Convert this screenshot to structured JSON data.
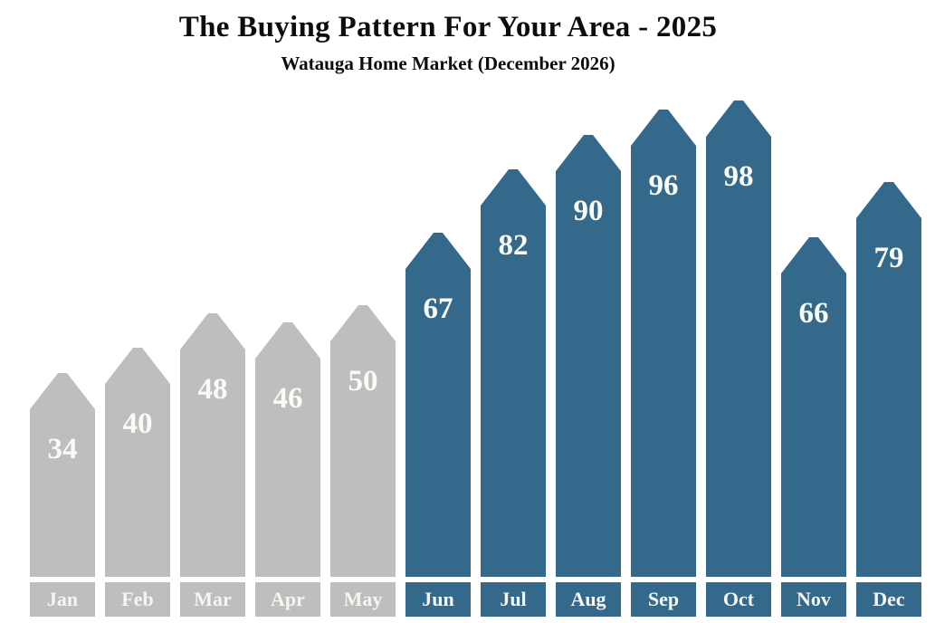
{
  "title": "The Buying Pattern For Your Area - 2025",
  "subtitle": "Watauga Home Market (December 2026)",
  "chart_data": {
    "type": "bar",
    "title": "The Buying Pattern For Your Area - 2025",
    "subtitle": "Watauga Home Market (December 2026)",
    "categories": [
      "Jan",
      "Feb",
      "Mar",
      "Apr",
      "May",
      "Jun",
      "Jul",
      "Aug",
      "Sep",
      "Oct",
      "Nov",
      "Dec"
    ],
    "values": [
      34,
      40,
      48,
      46,
      50,
      67,
      82,
      90,
      96,
      98,
      66,
      79
    ],
    "groups": [
      "muted",
      "muted",
      "muted",
      "muted",
      "muted",
      "highlight",
      "highlight",
      "highlight",
      "highlight",
      "highlight",
      "highlight",
      "highlight"
    ],
    "colors": {
      "muted": "#bebebe",
      "highlight": "#34698c",
      "value_label": "#fbfbf6",
      "month_label": "#f6f6f1",
      "title_text": "#0d0d0d",
      "background": "#ffffff"
    },
    "bar_shape": "upward-arrow-pentagon",
    "value_labels_shown": true,
    "xlabel": "",
    "ylabel": "",
    "ylim": [
      0,
      110
    ],
    "grid": false,
    "legend": "none"
  }
}
